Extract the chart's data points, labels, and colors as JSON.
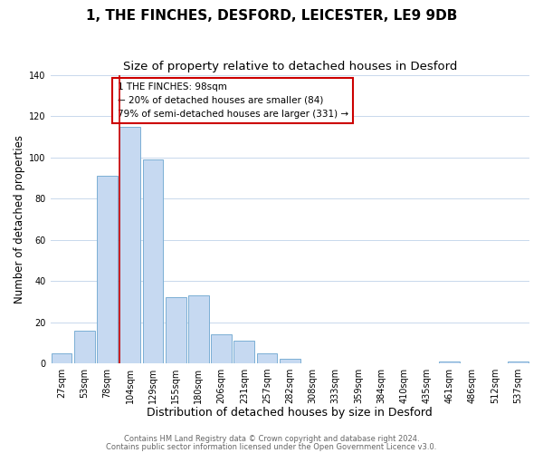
{
  "title": "1, THE FINCHES, DESFORD, LEICESTER, LE9 9DB",
  "subtitle": "Size of property relative to detached houses in Desford",
  "xlabel": "Distribution of detached houses by size in Desford",
  "ylabel": "Number of detached properties",
  "bar_labels": [
    "27sqm",
    "53sqm",
    "78sqm",
    "104sqm",
    "129sqm",
    "155sqm",
    "180sqm",
    "206sqm",
    "231sqm",
    "257sqm",
    "282sqm",
    "308sqm",
    "333sqm",
    "359sqm",
    "384sqm",
    "410sqm",
    "435sqm",
    "461sqm",
    "486sqm",
    "512sqm",
    "537sqm"
  ],
  "bar_values": [
    5,
    16,
    91,
    115,
    99,
    32,
    33,
    14,
    11,
    5,
    2,
    0,
    0,
    0,
    0,
    0,
    0,
    1,
    0,
    0,
    1
  ],
  "bar_color": "#c6d9f1",
  "bar_edge_color": "#7bafd4",
  "vline_x_index": 3,
  "vline_color": "#cc0000",
  "ylim": [
    0,
    140
  ],
  "yticks": [
    0,
    20,
    40,
    60,
    80,
    100,
    120,
    140
  ],
  "annotation_title": "1 THE FINCHES: 98sqm",
  "annotation_line1": "← 20% of detached houses are smaller (84)",
  "annotation_line2": "79% of semi-detached houses are larger (331) →",
  "annotation_box_color": "#ffffff",
  "annotation_box_edge": "#cc0000",
  "footer1": "Contains HM Land Registry data © Crown copyright and database right 2024.",
  "footer2": "Contains public sector information licensed under the Open Government Licence v3.0.",
  "background_color": "#ffffff",
  "grid_color": "#c8d8ec",
  "title_fontsize": 11,
  "subtitle_fontsize": 9.5,
  "xlabel_fontsize": 9,
  "ylabel_fontsize": 8.5,
  "tick_fontsize": 7,
  "annotation_fontsize": 7.5,
  "footer_fontsize": 6
}
